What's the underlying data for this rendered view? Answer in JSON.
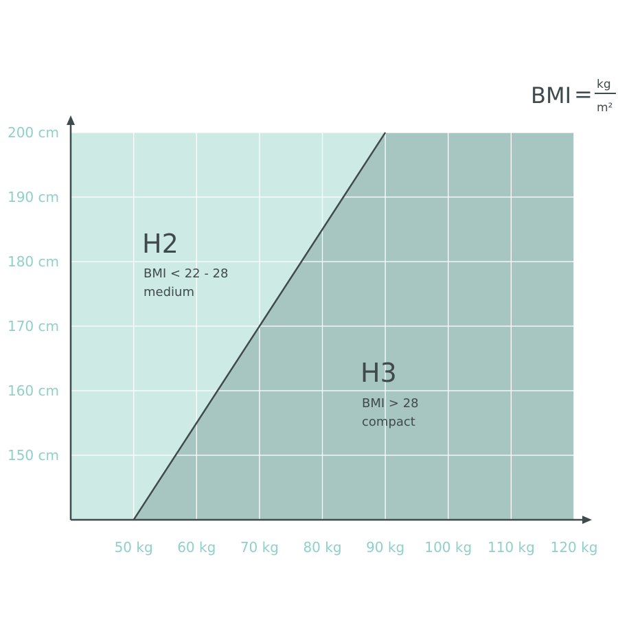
{
  "colors": {
    "light_region": "#cdeae4",
    "dark_region": "#a7c6c1",
    "grid": "#ffffff",
    "axis": "#3f4a4c",
    "tick_label": "#8fd0c8",
    "text": "#3f4a4c"
  },
  "formula": {
    "lhs": "BMI",
    "equals": "=",
    "numerator": "kg",
    "denominator": "m²"
  },
  "chart_data": {
    "type": "area",
    "grid": true,
    "x_ticks": [
      50,
      60,
      70,
      80,
      90,
      100,
      110,
      120
    ],
    "x_tick_labels": [
      "50 kg",
      "60 kg",
      "70 kg",
      "80 kg",
      "90 kg",
      "100 kg",
      "110 kg",
      "120 kg"
    ],
    "y_ticks": [
      150,
      160,
      170,
      180,
      190,
      200
    ],
    "y_tick_labels": [
      "150 cm",
      "160 cm",
      "170 cm",
      "180 cm",
      "190 cm",
      "200 cm"
    ],
    "xlim": [
      40,
      120
    ],
    "ylim": [
      140,
      200
    ],
    "boundary_line": {
      "x": [
        50,
        70,
        90
      ],
      "y": [
        140,
        170,
        200
      ]
    },
    "regions": [
      {
        "name": "H2",
        "lines": [
          "BMI < 22 - 28",
          "medium"
        ],
        "side": "above-left"
      },
      {
        "name": "H3",
        "lines": [
          "BMI > 28",
          "compact"
        ],
        "side": "below-right"
      }
    ]
  }
}
